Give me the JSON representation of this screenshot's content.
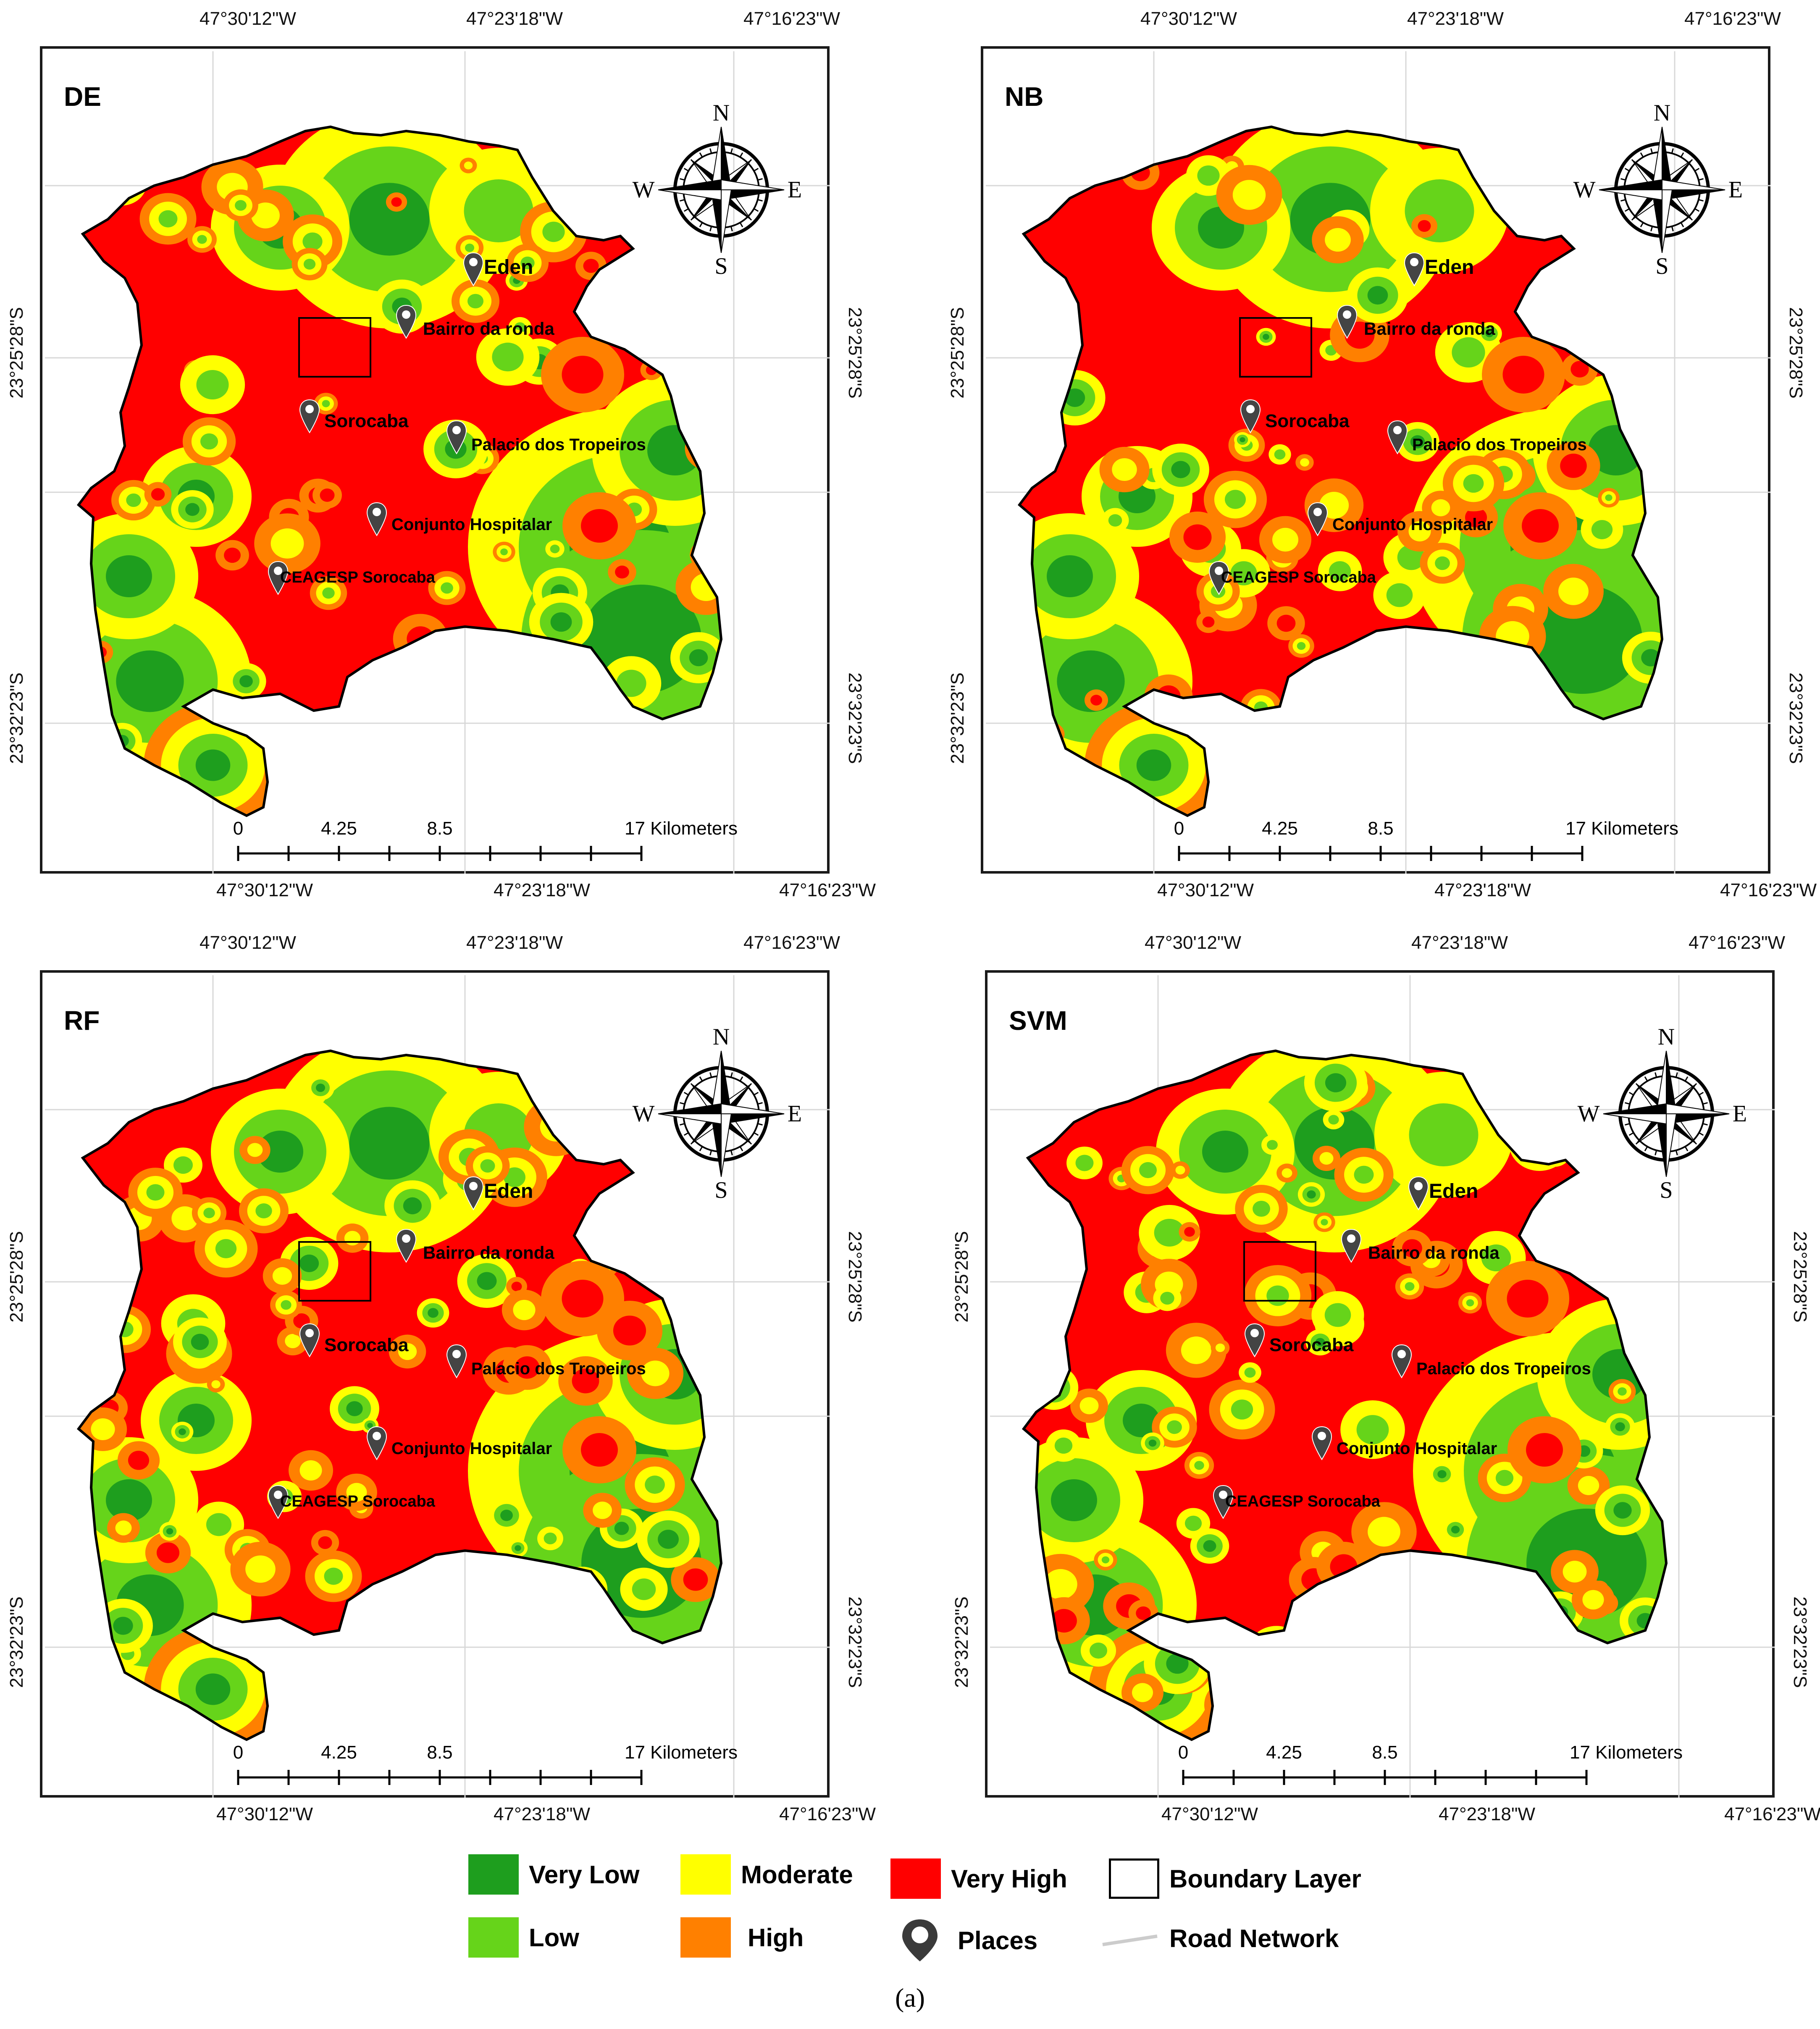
{
  "panels": [
    {
      "id": "de",
      "label": "DE",
      "top_lon_ticks": [
        "47°30'12\"W",
        "47°23'18\"W",
        "47°16'23\"W"
      ],
      "bottom_lon_ticks": [
        "47°30'12\"W",
        "47°23'18\"W",
        "47°16'23\"W"
      ],
      "lat_ticks": [
        "23°25'28\"S",
        "23°32'23\"S"
      ],
      "places": [
        "Eden",
        "Bairro da ronda",
        "Sorocaba",
        "Palacio dos Tropeiros",
        "Conjunto Hospitalar",
        "CEAGESP Sorocaba"
      ],
      "scale_labels": [
        "0",
        "4.25",
        "8.5",
        "17 Kilometers"
      ]
    },
    {
      "id": "nb",
      "label": "NB",
      "top_lon_ticks": [
        "47°30'12\"W",
        "47°23'18\"W",
        "47°16'23\"W"
      ],
      "bottom_lon_ticks": [
        "47°30'12\"W",
        "47°23'18\"W",
        "47°16'23\"W"
      ],
      "lat_ticks": [
        "23°25'28\"S",
        "23°32'23\"S"
      ],
      "places": [
        "Eden",
        "Bairro da ronda",
        "Sorocaba",
        "Palacio dos Tropeiros",
        "Conjunto Hospitalar",
        "CEAGESP Sorocaba"
      ],
      "scale_labels": [
        "0",
        "4.25",
        "8.5",
        "17 Kilometers"
      ]
    },
    {
      "id": "rf",
      "label": "RF",
      "top_lon_ticks": [
        "47°30'12\"W",
        "47°23'18\"W",
        "47°16'23\"W"
      ],
      "bottom_lon_ticks": [
        "47°30'12\"W",
        "47°23'18\"W",
        "47°16'23\"W"
      ],
      "lat_ticks": [
        "23°25'28\"S",
        "23°32'23\"S"
      ],
      "places": [
        "Eden",
        "Bairro da ronda",
        "Sorocaba",
        "Palacio dos Tropeiros",
        "Conjunto Hospitalar",
        "CEAGESP Sorocaba"
      ],
      "scale_labels": [
        "0",
        "4.25",
        "8.5",
        "17 Kilometers"
      ]
    },
    {
      "id": "svm",
      "label": "SVM",
      "top_lon_ticks": [
        "47°30'12\"W",
        "47°23'18\"W",
        "47°16'23\"W"
      ],
      "bottom_lon_ticks": [
        "47°30'12\"W",
        "47°23'18\"W",
        "47°16'23\"W"
      ],
      "lat_ticks": [
        "23°25'28\"S",
        "23°32'23\"S"
      ],
      "places": [
        "Eden",
        "Bairro da ronda",
        "Sorocaba",
        "Palacio dos Tropeiros",
        "Conjunto Hospitalar",
        "CEAGESP Sorocaba"
      ],
      "scale_labels": [
        "0",
        "4.25",
        "8.5",
        "17 Kilometers"
      ]
    }
  ],
  "compass": {
    "n": "N",
    "s": "S",
    "e": "E",
    "w": "W",
    "icon": "compass-rose-icon"
  },
  "legend": {
    "very_low": {
      "label": "Very Low",
      "color": "#1e9e1e"
    },
    "low": {
      "label": "Low",
      "color": "#66d41a"
    },
    "moderate": {
      "label": "Moderate",
      "color": "#ffff00"
    },
    "high": {
      "label": "High",
      "color": "#ff8000"
    },
    "very_high": {
      "label": "Very High",
      "color": "#ff0000"
    },
    "boundary": {
      "label": "Boundary Layer"
    },
    "places": {
      "label": "Places",
      "icon": "map-pin-icon"
    },
    "road": {
      "label": "Road Network",
      "color": "#cccccc"
    }
  },
  "caption": "(a)"
}
